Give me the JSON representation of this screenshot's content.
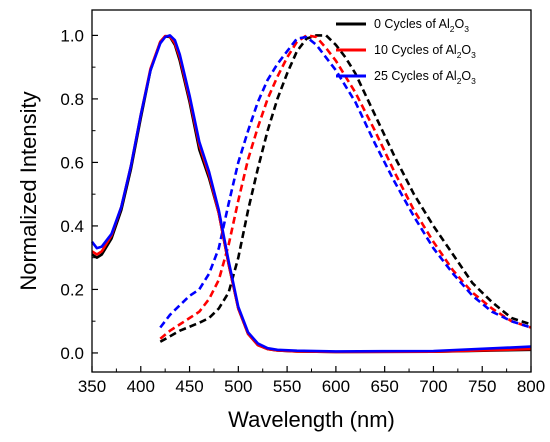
{
  "chart_data": {
    "type": "line",
    "xlabel": "Wavelength (nm)",
    "ylabel": "Normalized Intensity",
    "xlim": [
      350,
      800
    ],
    "ylim": [
      -0.06,
      1.08
    ],
    "x_ticks": [
      350,
      400,
      450,
      500,
      550,
      600,
      650,
      700,
      750,
      800
    ],
    "x_tick_labels": [
      "350",
      "400",
      "450",
      "500",
      "550",
      "600",
      "650",
      "700",
      "750",
      "800"
    ],
    "y_ticks": [
      0.0,
      0.2,
      0.4,
      0.6,
      0.8,
      1.0
    ],
    "y_tick_labels": [
      "0.0",
      "0.2",
      "0.4",
      "0.6",
      "0.8",
      "1.0"
    ],
    "legend_position": "top-right",
    "series": [
      {
        "name": "0 Cycles of Al2O3",
        "legend_parts": [
          "0 Cycles of Al",
          "2",
          "O",
          "3"
        ],
        "color": "#000000",
        "absorption": {
          "x": [
            350,
            355,
            360,
            370,
            380,
            390,
            400,
            410,
            420,
            425,
            430,
            435,
            440,
            450,
            460,
            470,
            480,
            490,
            500,
            510,
            520,
            530,
            540,
            560,
            600,
            700,
            800
          ],
          "y": [
            0.31,
            0.3,
            0.31,
            0.36,
            0.45,
            0.58,
            0.74,
            0.89,
            0.98,
            0.997,
            0.995,
            0.97,
            0.92,
            0.79,
            0.64,
            0.55,
            0.44,
            0.28,
            0.14,
            0.06,
            0.025,
            0.012,
            0.008,
            0.005,
            0.003,
            0.004,
            0.01
          ]
        },
        "emission": {
          "x": [
            420,
            440,
            460,
            470,
            480,
            490,
            500,
            510,
            520,
            530,
            540,
            550,
            560,
            570,
            580,
            590,
            600,
            610,
            620,
            640,
            660,
            680,
            700,
            720,
            740,
            760,
            780,
            800
          ],
          "y": [
            0.035,
            0.07,
            0.095,
            0.11,
            0.14,
            0.19,
            0.3,
            0.45,
            0.58,
            0.7,
            0.8,
            0.88,
            0.95,
            0.99,
            1.0,
            1.0,
            0.97,
            0.93,
            0.88,
            0.75,
            0.62,
            0.5,
            0.4,
            0.31,
            0.22,
            0.16,
            0.11,
            0.09
          ]
        }
      },
      {
        "name": "10 Cycles of Al2O3",
        "legend_parts": [
          "10 Cycles of Al",
          "2",
          "O",
          "3"
        ],
        "color": "#ff0000",
        "absorption": {
          "x": [
            350,
            355,
            360,
            370,
            380,
            390,
            400,
            410,
            420,
            425,
            430,
            435,
            440,
            450,
            460,
            470,
            480,
            490,
            500,
            510,
            520,
            530,
            540,
            560,
            600,
            700,
            800
          ],
          "y": [
            0.32,
            0.31,
            0.32,
            0.37,
            0.46,
            0.59,
            0.75,
            0.895,
            0.98,
            0.998,
            0.997,
            0.975,
            0.93,
            0.8,
            0.655,
            0.56,
            0.44,
            0.28,
            0.14,
            0.06,
            0.025,
            0.012,
            0.008,
            0.005,
            0.003,
            0.004,
            0.012
          ]
        },
        "emission": {
          "x": [
            420,
            430,
            440,
            450,
            460,
            470,
            480,
            490,
            500,
            510,
            520,
            530,
            540,
            550,
            560,
            570,
            580,
            590,
            600,
            610,
            620,
            640,
            660,
            680,
            700,
            720,
            740,
            760,
            780,
            800
          ],
          "y": [
            0.045,
            0.07,
            0.09,
            0.11,
            0.13,
            0.17,
            0.23,
            0.34,
            0.48,
            0.61,
            0.71,
            0.8,
            0.87,
            0.93,
            0.98,
            1.0,
            0.995,
            0.96,
            0.92,
            0.87,
            0.82,
            0.7,
            0.57,
            0.45,
            0.35,
            0.26,
            0.19,
            0.14,
            0.1,
            0.08
          ]
        }
      },
      {
        "name": "25 Cycles of Al2O3",
        "legend_parts": [
          "25 Cycles of Al",
          "2",
          "O",
          "3"
        ],
        "color": "#0000ff",
        "absorption": {
          "x": [
            350,
            355,
            360,
            370,
            380,
            390,
            400,
            410,
            420,
            425,
            430,
            435,
            440,
            450,
            460,
            470,
            480,
            490,
            500,
            510,
            520,
            530,
            540,
            560,
            600,
            700,
            800
          ],
          "y": [
            0.35,
            0.33,
            0.335,
            0.375,
            0.46,
            0.59,
            0.75,
            0.89,
            0.975,
            0.995,
            1.0,
            0.985,
            0.94,
            0.81,
            0.665,
            0.57,
            0.45,
            0.29,
            0.145,
            0.065,
            0.03,
            0.015,
            0.01,
            0.007,
            0.005,
            0.006,
            0.02
          ]
        },
        "emission": {
          "x": [
            420,
            430,
            440,
            450,
            460,
            470,
            480,
            490,
            500,
            510,
            520,
            530,
            540,
            550,
            560,
            570,
            580,
            590,
            600,
            610,
            620,
            640,
            660,
            680,
            700,
            720,
            740,
            760,
            780,
            800
          ],
          "y": [
            0.08,
            0.12,
            0.15,
            0.18,
            0.2,
            0.25,
            0.33,
            0.47,
            0.6,
            0.7,
            0.79,
            0.86,
            0.91,
            0.95,
            0.99,
            0.995,
            0.97,
            0.93,
            0.89,
            0.84,
            0.79,
            0.66,
            0.54,
            0.43,
            0.33,
            0.25,
            0.18,
            0.13,
            0.1,
            0.08
          ]
        }
      }
    ]
  }
}
